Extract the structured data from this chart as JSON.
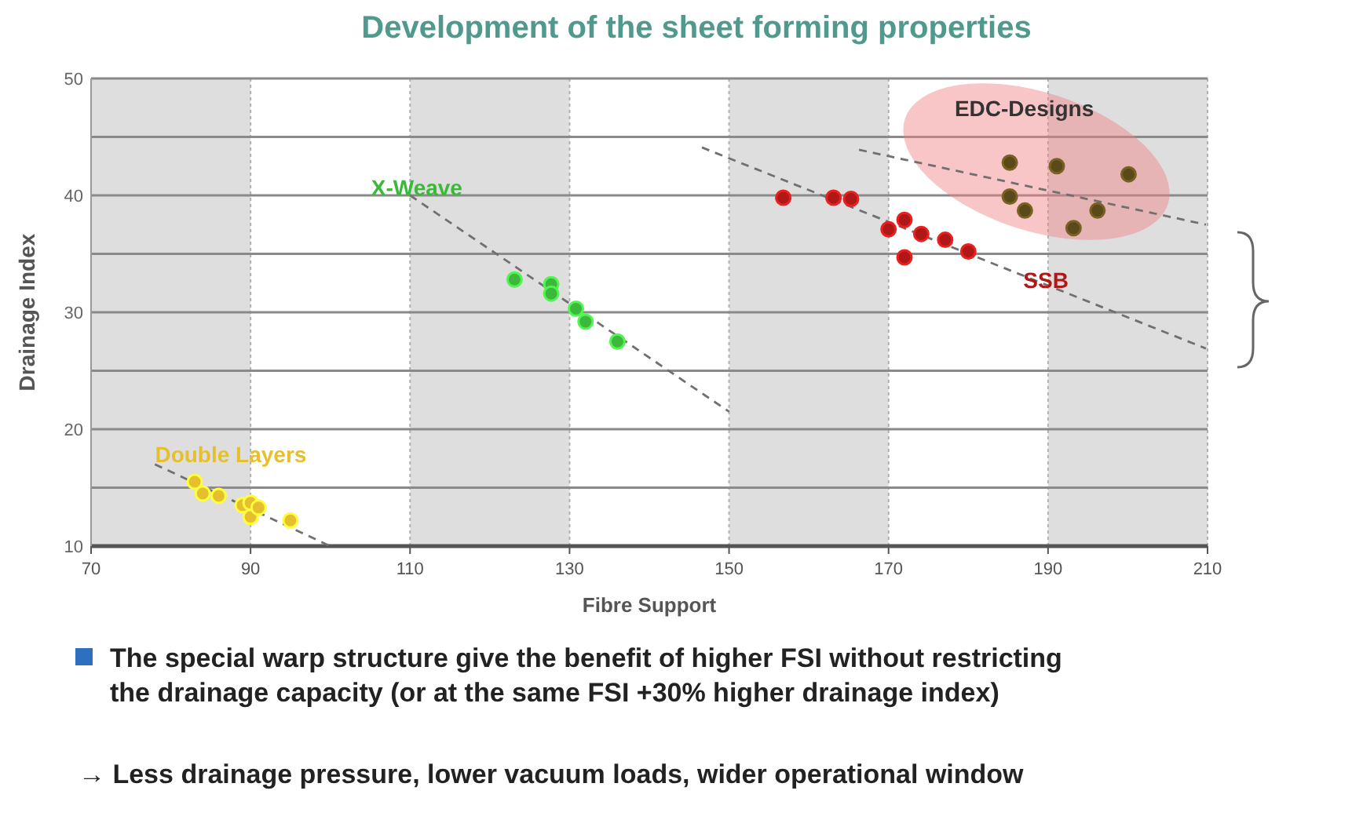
{
  "chart_data": {
    "type": "scatter",
    "title": "Development of the sheet forming properties",
    "xlabel": "Fibre Support",
    "ylabel": "Drainage Index",
    "xlim": [
      70,
      210
    ],
    "xticks": [
      70,
      90,
      110,
      130,
      150,
      170,
      190,
      210
    ],
    "ylim": [
      10,
      50
    ],
    "yticks": [
      10,
      {
        "value": 15,
        "label": null
      },
      20,
      {
        "value": 25,
        "label": null
      },
      30,
      {
        "value": 35,
        "label": null
      },
      40,
      {
        "value": 45,
        "label": null
      },
      50
    ],
    "grid": true,
    "marker": "circle",
    "bands": [
      {
        "axis": "x",
        "from": 70,
        "to": 90,
        "color": "#dedede"
      },
      {
        "axis": "x",
        "from": 110,
        "to": 130,
        "color": "#dedede"
      },
      {
        "axis": "x",
        "from": 150,
        "to": 170,
        "color": "#dedede"
      },
      {
        "axis": "x",
        "from": 190,
        "to": 210,
        "color": "#dedede"
      }
    ],
    "series": [
      {
        "name": "Double Layers",
        "color": "#e6bf2e",
        "x": [
          83,
          84,
          86,
          89,
          90,
          90,
          91,
          95
        ],
        "values": [
          15.5,
          14.5,
          14.3,
          13.5,
          12.5,
          13.7,
          13.3,
          12.2
        ]
      },
      {
        "name": "X-Weave",
        "color": "#3cb83c",
        "x": [
          123.1,
          127.7,
          127.7,
          130.8,
          132,
          136
        ],
        "values": [
          32.8,
          32.4,
          31.6,
          30.3,
          29.2,
          27.5
        ]
      },
      {
        "name": "SSB",
        "color": "#b01818",
        "x": [
          156.8,
          163.1,
          165.3,
          170,
          172,
          172,
          174.1,
          177.1,
          180
        ],
        "values": [
          39.8,
          39.8,
          39.7,
          37.1,
          37.9,
          34.7,
          36.7,
          36.2,
          35.2
        ]
      },
      {
        "name": "EDC-Designs",
        "color": "#5a4a1a",
        "x": [
          185.2,
          191.1,
          200.1,
          185.2,
          187.1,
          196.2,
          193.2
        ],
        "values": [
          42.8,
          42.5,
          41.8,
          39.9,
          38.7,
          38.7,
          37.2
        ]
      },
      {
        "type": "line",
        "color": "#707070",
        "line_style": "dashed",
        "marker": "none",
        "x": [
          78,
          100
        ],
        "values": [
          17,
          10
        ]
      },
      {
        "type": "line",
        "color": "#707070",
        "line_style": "dashed",
        "marker": "none",
        "x": [
          110,
          150
        ],
        "values": [
          40,
          21.5
        ]
      },
      {
        "type": "line",
        "color": "#707070",
        "line_style": "dashed",
        "marker": "none",
        "x": [
          146.6,
          209.8
        ],
        "values": [
          44.1,
          26.9
        ]
      },
      {
        "type": "line",
        "color": "#707070",
        "line_style": "dashed",
        "marker": "none",
        "x": [
          166.3,
          209.8
        ],
        "values": [
          43.9,
          37.5
        ]
      }
    ],
    "annotations": [
      "The special warp structure give the benefit of higher FSI without restricting the drainage capacity (or at the same FSI +30% higher drainage index)",
      "→ Less drainage pressure, lower vacuum loads, wider operational window"
    ]
  }
}
